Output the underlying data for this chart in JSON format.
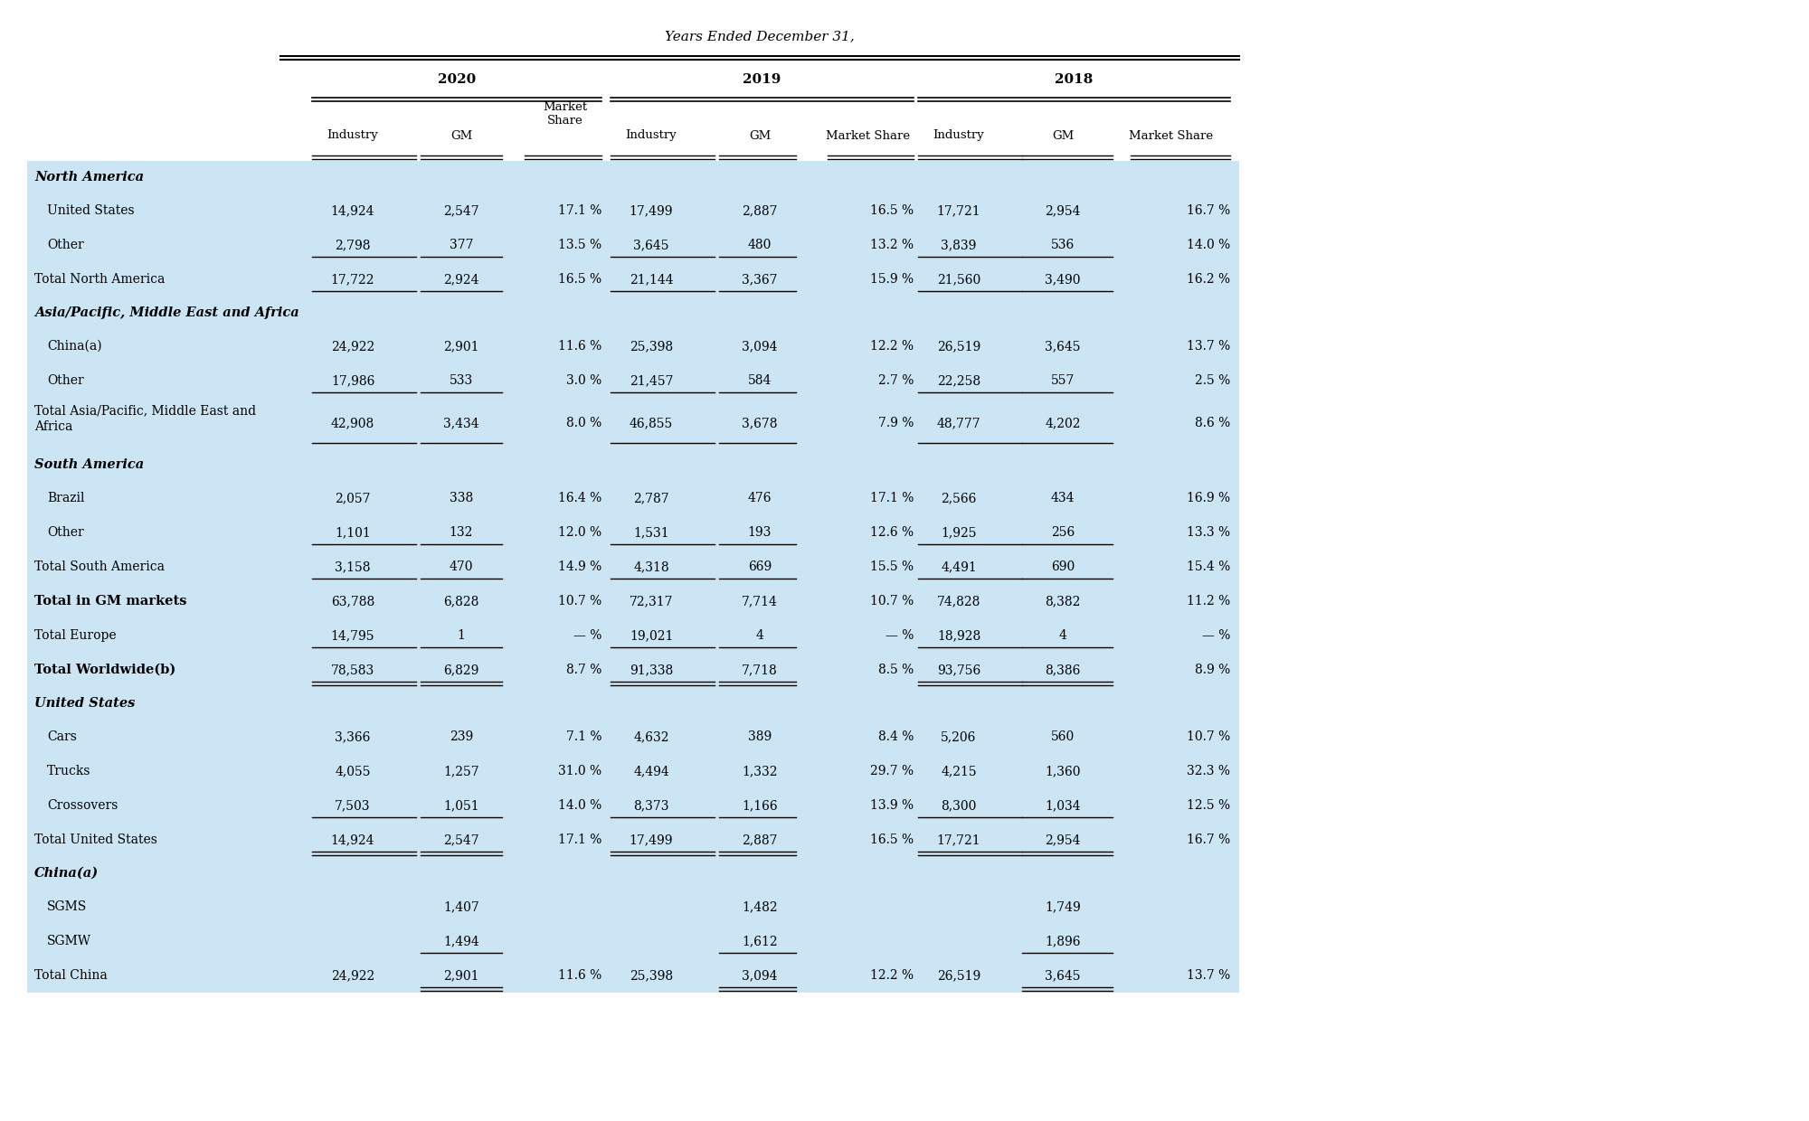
{
  "title": "Years Ended December 31,",
  "year_headers": [
    "2020",
    "2019",
    "2018"
  ],
  "bg_color": "#cce5f5",
  "rows": [
    {
      "label": "North America",
      "type": "section_header",
      "indent": 0,
      "values": [
        "",
        "",
        "",
        "",
        "",
        "",
        "",
        "",
        ""
      ]
    },
    {
      "label": "United States",
      "type": "data",
      "indent": 1,
      "values": [
        "14,924",
        "2,547",
        "17.1 %",
        "17,499",
        "2,887",
        "16.5 %",
        "17,721",
        "2,954",
        "16.7 %"
      ]
    },
    {
      "label": "Other",
      "type": "data",
      "indent": 1,
      "values": [
        "2,798",
        "377",
        "13.5 %",
        "3,645",
        "480",
        "13.2 %",
        "3,839",
        "536",
        "14.0 %"
      ],
      "underline_cols": [
        0,
        1,
        3,
        4,
        6,
        7
      ]
    },
    {
      "label": "Total North America",
      "type": "total",
      "indent": 0,
      "values": [
        "17,722",
        "2,924",
        "16.5 %",
        "21,144",
        "3,367",
        "15.9 %",
        "21,560",
        "3,490",
        "16.2 %"
      ],
      "underline_cols": [
        0,
        1,
        3,
        4,
        6,
        7
      ]
    },
    {
      "label": "Asia/Pacific, Middle East and Africa",
      "type": "section_header",
      "indent": 0,
      "values": [
        "",
        "",
        "",
        "",
        "",
        "",
        "",
        "",
        ""
      ]
    },
    {
      "label": "China(a)",
      "type": "data",
      "indent": 1,
      "values": [
        "24,922",
        "2,901",
        "11.6 %",
        "25,398",
        "3,094",
        "12.2 %",
        "26,519",
        "3,645",
        "13.7 %"
      ]
    },
    {
      "label": "Other",
      "type": "data",
      "indent": 1,
      "values": [
        "17,986",
        "533",
        "3.0 %",
        "21,457",
        "584",
        "2.7 %",
        "22,258",
        "557",
        "2.5 %"
      ],
      "underline_cols": [
        0,
        1,
        3,
        4,
        6,
        7
      ]
    },
    {
      "label": "Total Asia/Pacific, Middle East and\nAfrica",
      "type": "total_wrap",
      "indent": 0,
      "values": [
        "42,908",
        "3,434",
        "8.0 %",
        "46,855",
        "3,678",
        "7.9 %",
        "48,777",
        "4,202",
        "8.6 %"
      ],
      "underline_cols": [
        0,
        1,
        3,
        4,
        6,
        7
      ]
    },
    {
      "label": "South America",
      "type": "section_header",
      "indent": 0,
      "values": [
        "",
        "",
        "",
        "",
        "",
        "",
        "",
        "",
        ""
      ]
    },
    {
      "label": "Brazil",
      "type": "data",
      "indent": 1,
      "values": [
        "2,057",
        "338",
        "16.4 %",
        "2,787",
        "476",
        "17.1 %",
        "2,566",
        "434",
        "16.9 %"
      ]
    },
    {
      "label": "Other",
      "type": "data",
      "indent": 1,
      "values": [
        "1,101",
        "132",
        "12.0 %",
        "1,531",
        "193",
        "12.6 %",
        "1,925",
        "256",
        "13.3 %"
      ],
      "underline_cols": [
        0,
        1,
        3,
        4,
        6,
        7
      ]
    },
    {
      "label": "Total South America",
      "type": "total",
      "indent": 0,
      "values": [
        "3,158",
        "470",
        "14.9 %",
        "4,318",
        "669",
        "15.5 %",
        "4,491",
        "690",
        "15.4 %"
      ],
      "underline_cols": [
        0,
        1,
        3,
        4,
        6,
        7
      ]
    },
    {
      "label": "Total in GM markets",
      "type": "bold_total",
      "indent": 0,
      "values": [
        "63,788",
        "6,828",
        "10.7 %",
        "72,317",
        "7,714",
        "10.7 %",
        "74,828",
        "8,382",
        "11.2 %"
      ]
    },
    {
      "label": "Total Europe",
      "type": "data",
      "indent": 0,
      "values": [
        "14,795",
        "1",
        "— %",
        "19,021",
        "4",
        "— %",
        "18,928",
        "4",
        "— %"
      ],
      "underline_cols": [
        0,
        1,
        3,
        4,
        6,
        7
      ]
    },
    {
      "label": "Total Worldwide(b)",
      "type": "bold_total",
      "indent": 0,
      "values": [
        "78,583",
        "6,829",
        "8.7 %",
        "91,338",
        "7,718",
        "8.5 %",
        "93,756",
        "8,386",
        "8.9 %"
      ],
      "underline_cols": [
        0,
        1,
        3,
        4,
        6,
        7
      ],
      "double_underline": true
    },
    {
      "label": "United States",
      "type": "section_header",
      "indent": 0,
      "values": [
        "",
        "",
        "",
        "",
        "",
        "",
        "",
        "",
        ""
      ]
    },
    {
      "label": "Cars",
      "type": "data",
      "indent": 1,
      "values": [
        "3,366",
        "239",
        "7.1 %",
        "4,632",
        "389",
        "8.4 %",
        "5,206",
        "560",
        "10.7 %"
      ]
    },
    {
      "label": "Trucks",
      "type": "data",
      "indent": 1,
      "values": [
        "4,055",
        "1,257",
        "31.0 %",
        "4,494",
        "1,332",
        "29.7 %",
        "4,215",
        "1,360",
        "32.3 %"
      ]
    },
    {
      "label": "Crossovers",
      "type": "data",
      "indent": 1,
      "values": [
        "7,503",
        "1,051",
        "14.0 %",
        "8,373",
        "1,166",
        "13.9 %",
        "8,300",
        "1,034",
        "12.5 %"
      ],
      "underline_cols": [
        0,
        1,
        3,
        4,
        6,
        7
      ]
    },
    {
      "label": "Total United States",
      "type": "total",
      "indent": 0,
      "values": [
        "14,924",
        "2,547",
        "17.1 %",
        "17,499",
        "2,887",
        "16.5 %",
        "17,721",
        "2,954",
        "16.7 %"
      ],
      "underline_cols": [
        0,
        1,
        3,
        4,
        6,
        7
      ],
      "double_underline": true
    },
    {
      "label": "China(a)",
      "type": "section_header",
      "indent": 0,
      "values": [
        "",
        "",
        "",
        "",
        "",
        "",
        "",
        "",
        ""
      ]
    },
    {
      "label": "SGMS",
      "type": "data",
      "indent": 1,
      "values": [
        "",
        "1,407",
        "",
        "",
        "1,482",
        "",
        "",
        "1,749",
        ""
      ]
    },
    {
      "label": "SGMW",
      "type": "data",
      "indent": 1,
      "values": [
        "",
        "1,494",
        "",
        "",
        "1,612",
        "",
        "",
        "1,896",
        ""
      ],
      "underline_cols": [
        1,
        4,
        7
      ]
    },
    {
      "label": "Total China",
      "type": "total",
      "indent": 0,
      "values": [
        "24,922",
        "2,901",
        "11.6 %",
        "25,398",
        "3,094",
        "12.2 %",
        "26,519",
        "3,645",
        "13.7 %"
      ],
      "underline_cols": [
        1,
        4,
        7
      ],
      "double_underline": true
    }
  ]
}
